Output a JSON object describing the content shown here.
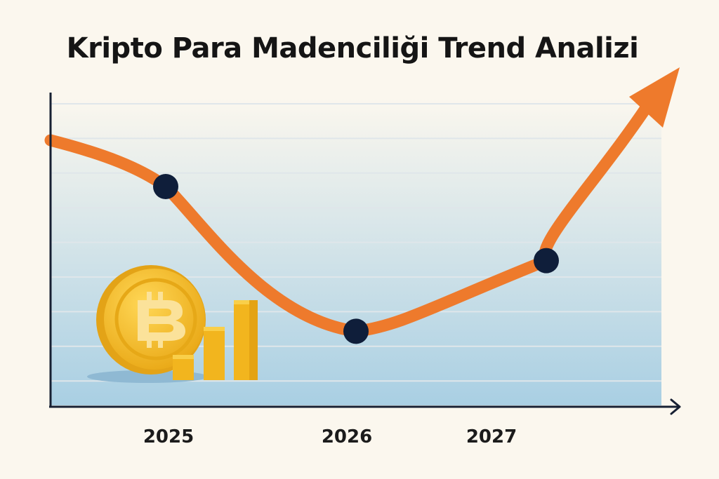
{
  "chart_data": {
    "type": "line",
    "title": "Kripto Para Madenciliği Trend Analizi",
    "x_ticks": [
      "2025",
      "2026",
      "2027"
    ],
    "series": [
      {
        "values": [
          {
            "x": 2025.0,
            "y": 65
          },
          {
            "x": 2026.0,
            "y": 22
          },
          {
            "x": 2027.0,
            "y": 43
          }
        ]
      }
    ],
    "trend": "down then up",
    "grid": true,
    "legend": "none",
    "colors": {
      "line": "#ee7a2c",
      "points": "#0f1e3a",
      "axis": "#172033",
      "area_top": "#fbf7ee",
      "area_bottom": "#a9cfe3",
      "gridline": "#dfe6ea",
      "coin": "#f2b51e",
      "coin_inner": "#f7c93a",
      "coin_symbol": "#fbe29a"
    },
    "decoration": [
      "bitcoin-coin-icon",
      "gold-bars-icon"
    ]
  }
}
